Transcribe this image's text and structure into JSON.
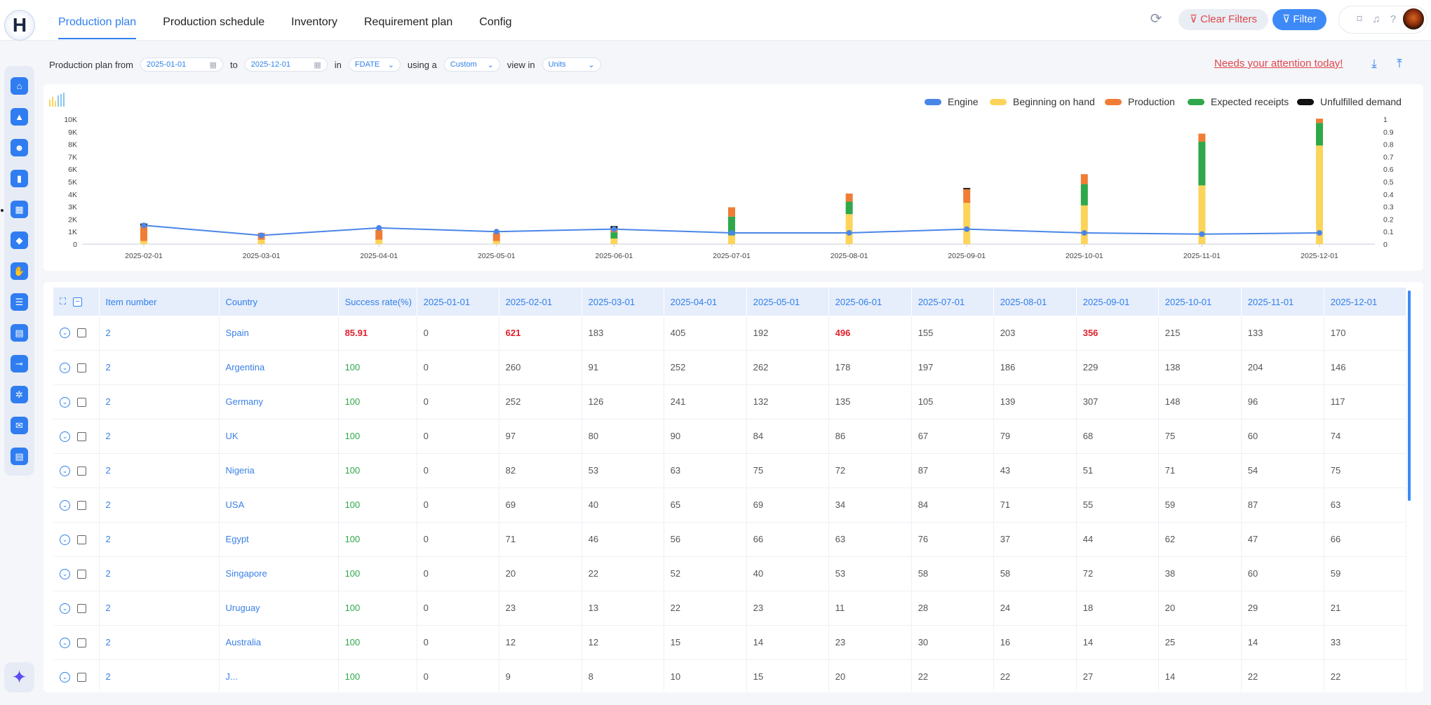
{
  "app": {
    "logo_text": "H"
  },
  "nav": {
    "tabs": [
      "Production plan",
      "Production schedule",
      "Inventory",
      "Requirement plan",
      "Config"
    ],
    "active_tab": "Production plan"
  },
  "toolbar": {
    "clear_filters": "Clear Filters",
    "filter": "Filter"
  },
  "filters": {
    "label_from": "Production plan from",
    "from_date": "2025-01-01",
    "label_to": "to",
    "to_date": "2025-12-01",
    "label_in": "in",
    "in_value": "FDATE",
    "label_using": "using a",
    "using_value": "Custom",
    "label_view": "view in",
    "view_value": "Units",
    "attention_link": "Needs your attention today!"
  },
  "colors": {
    "accent": "#2f80ed",
    "engine": "#4a86e8",
    "beginning_on_hand": "#fcd45a",
    "production": "#ef7d35",
    "expected_receipts": "#2ea84a",
    "unfulfilled_demand": "#111111",
    "danger": "#e0474c"
  },
  "chart_data": {
    "type": "bar",
    "categories": [
      "2025-02-01",
      "2025-03-01",
      "2025-04-01",
      "2025-05-01",
      "2025-06-01",
      "2025-07-01",
      "2025-08-01",
      "2025-09-01",
      "2025-10-01",
      "2025-11-01",
      "2025-12-01"
    ],
    "series": [
      {
        "name": "Beginning on hand",
        "values": [
          250,
          350,
          350,
          250,
          450,
          700,
          2400,
          3300,
          3100,
          4700,
          7900
        ]
      },
      {
        "name": "Production",
        "values": [
          1250,
          550,
          800,
          650,
          300,
          750,
          650,
          1100,
          800,
          650,
          350
        ]
      },
      {
        "name": "Expected receipts",
        "values": [
          0,
          0,
          0,
          0,
          500,
          1500,
          1000,
          0,
          1700,
          3500,
          1800
        ]
      },
      {
        "name": "Unfulfilled demand",
        "values": [
          150,
          0,
          0,
          0,
          200,
          0,
          0,
          100,
          0,
          0,
          0
        ]
      },
      {
        "name": "Engine",
        "values": [
          0.15,
          0.07,
          0.13,
          0.1,
          0.12,
          0.09,
          0.09,
          0.12,
          0.09,
          0.08,
          0.09
        ]
      }
    ],
    "left_axis": {
      "min": 0,
      "max": 10000,
      "ticks": [
        "0",
        "1K",
        "2K",
        "3K",
        "4K",
        "5K",
        "6K",
        "7K",
        "8K",
        "9K",
        "10K"
      ]
    },
    "right_axis": {
      "min": 0,
      "max": 1,
      "ticks": [
        "0",
        "0.1",
        "0.2",
        "0.3",
        "0.4",
        "0.5",
        "0.6",
        "0.7",
        "0.8",
        "0.9",
        "1"
      ]
    },
    "legend_position": "top-right",
    "grid": false
  },
  "table": {
    "columns": [
      "Item number",
      "Country",
      "Success rate(%)",
      "2025-01-01",
      "2025-02-01",
      "2025-03-01",
      "2025-04-01",
      "2025-05-01",
      "2025-06-01",
      "2025-07-01",
      "2025-08-01",
      "2025-09-01",
      "2025-10-01",
      "2025-11-01",
      "2025-12-01"
    ],
    "rows": [
      {
        "item": "2",
        "country": "Spain",
        "rate": "85.91",
        "rate_low": true,
        "values": [
          "0",
          "621",
          "183",
          "405",
          "192",
          "496",
          "155",
          "203",
          "356",
          "215",
          "133",
          "170"
        ],
        "flags": [
          false,
          true,
          false,
          false,
          false,
          true,
          false,
          false,
          true,
          false,
          false,
          false
        ]
      },
      {
        "item": "2",
        "country": "Argentina",
        "rate": "100",
        "values": [
          "0",
          "260",
          "91",
          "252",
          "262",
          "178",
          "197",
          "186",
          "229",
          "138",
          "204",
          "146"
        ]
      },
      {
        "item": "2",
        "country": "Germany",
        "rate": "100",
        "values": [
          "0",
          "252",
          "126",
          "241",
          "132",
          "135",
          "105",
          "139",
          "307",
          "148",
          "96",
          "117"
        ]
      },
      {
        "item": "2",
        "country": "UK",
        "rate": "100",
        "values": [
          "0",
          "97",
          "80",
          "90",
          "84",
          "86",
          "67",
          "79",
          "68",
          "75",
          "60",
          "74"
        ]
      },
      {
        "item": "2",
        "country": "Nigeria",
        "rate": "100",
        "values": [
          "0",
          "82",
          "53",
          "63",
          "75",
          "72",
          "87",
          "43",
          "51",
          "71",
          "54",
          "75"
        ]
      },
      {
        "item": "2",
        "country": "USA",
        "rate": "100",
        "values": [
          "0",
          "69",
          "40",
          "65",
          "69",
          "34",
          "84",
          "71",
          "55",
          "59",
          "87",
          "63"
        ]
      },
      {
        "item": "2",
        "country": "Egypt",
        "rate": "100",
        "values": [
          "0",
          "71",
          "46",
          "56",
          "66",
          "63",
          "76",
          "37",
          "44",
          "62",
          "47",
          "66"
        ]
      },
      {
        "item": "2",
        "country": "Singapore",
        "rate": "100",
        "values": [
          "0",
          "20",
          "22",
          "52",
          "40",
          "53",
          "58",
          "58",
          "72",
          "38",
          "60",
          "59"
        ]
      },
      {
        "item": "2",
        "country": "Uruguay",
        "rate": "100",
        "values": [
          "0",
          "23",
          "13",
          "22",
          "23",
          "11",
          "28",
          "24",
          "18",
          "20",
          "29",
          "21"
        ]
      },
      {
        "item": "2",
        "country": "Australia",
        "rate": "100",
        "values": [
          "0",
          "12",
          "12",
          "15",
          "14",
          "23",
          "30",
          "16",
          "14",
          "25",
          "14",
          "33"
        ]
      },
      {
        "item": "2",
        "country": "J...",
        "rate": "100",
        "values": [
          "0",
          "9",
          "8",
          "10",
          "15",
          "20",
          "22",
          "22",
          "27",
          "14",
          "22",
          "22"
        ]
      }
    ]
  }
}
